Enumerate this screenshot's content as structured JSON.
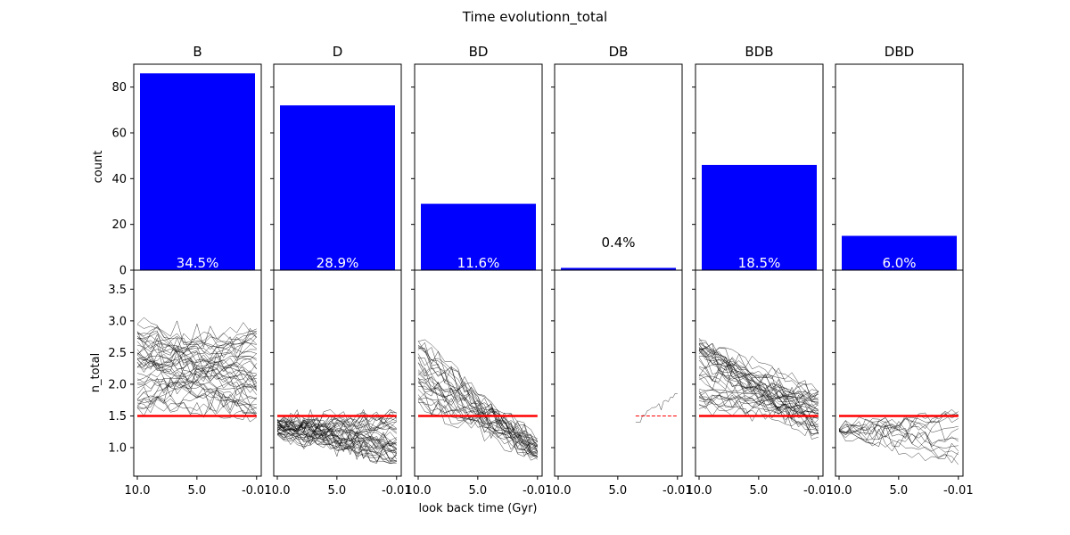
{
  "figure": {
    "suptitle": "Time evolutionn_total",
    "xlabel": "look back time (Gyr)"
  },
  "chart_data": [
    {
      "type": "bar",
      "panel": "top",
      "ylabel": "count",
      "ylim": [
        0,
        90
      ],
      "yticks": [
        0,
        20,
        40,
        60,
        80
      ],
      "categories": [
        "B",
        "D",
        "BD",
        "DB",
        "BDB",
        "DBD"
      ],
      "values": [
        86,
        72,
        29,
        1,
        46,
        15
      ],
      "percent_labels": [
        "34.5%",
        "28.9%",
        "11.6%",
        "0.4%",
        "18.5%",
        "6.0%"
      ],
      "bar_color": "#0000ff"
    },
    {
      "type": "line",
      "panel": "bottom",
      "ylabel": "n_total",
      "ylim": [
        0.55,
        3.8
      ],
      "yticks": [
        1.0,
        1.5,
        2.0,
        2.5,
        3.0,
        3.5
      ],
      "xlim": [
        10.3,
        -0.4
      ],
      "xticks": [
        10.0,
        5.0,
        -0.01
      ],
      "xtick_labels": [
        "10.0",
        "5.0",
        "-0.01"
      ],
      "reference_line": {
        "y": 1.5,
        "color": "#ff0000",
        "style": "dashed"
      },
      "track_color": "#000000",
      "facets": [
        {
          "name": "B",
          "x_range": [
            10.0,
            -0.01
          ],
          "n_tracks": 45,
          "y_start": [
            1.6,
            3.0
          ],
          "y_end": [
            1.45,
            2.9
          ],
          "y_range": [
            1.4,
            3.65
          ]
        },
        {
          "name": "D",
          "x_range": [
            10.0,
            -0.01
          ],
          "n_tracks": 40,
          "y_start": [
            1.2,
            1.45
          ],
          "y_end": [
            0.75,
            1.55
          ],
          "y_range": [
            0.75,
            1.6
          ]
        },
        {
          "name": "BD",
          "x_range": [
            10.0,
            -0.01
          ],
          "n_tracks": 30,
          "y_start": [
            1.7,
            2.8
          ],
          "y_end": [
            0.8,
            1.15
          ],
          "y_range": [
            0.8,
            2.8
          ]
        },
        {
          "name": "DB",
          "x_range": [
            3.5,
            -0.01
          ],
          "n_tracks": 1,
          "y_start": [
            1.4,
            1.4
          ],
          "y_end": [
            1.85,
            1.85
          ],
          "y_range": [
            1.4,
            2.0
          ]
        },
        {
          "name": "BDB",
          "x_range": [
            10.0,
            -0.01
          ],
          "n_tracks": 40,
          "y_start": [
            1.6,
            2.75
          ],
          "y_end": [
            1.15,
            1.9
          ],
          "y_range": [
            1.05,
            2.85
          ]
        },
        {
          "name": "DBD",
          "x_range": [
            10.0,
            -0.01
          ],
          "n_tracks": 14,
          "y_start": [
            1.25,
            1.3
          ],
          "y_end": [
            0.7,
            1.8
          ],
          "y_range": [
            0.7,
            2.15
          ]
        }
      ]
    }
  ]
}
